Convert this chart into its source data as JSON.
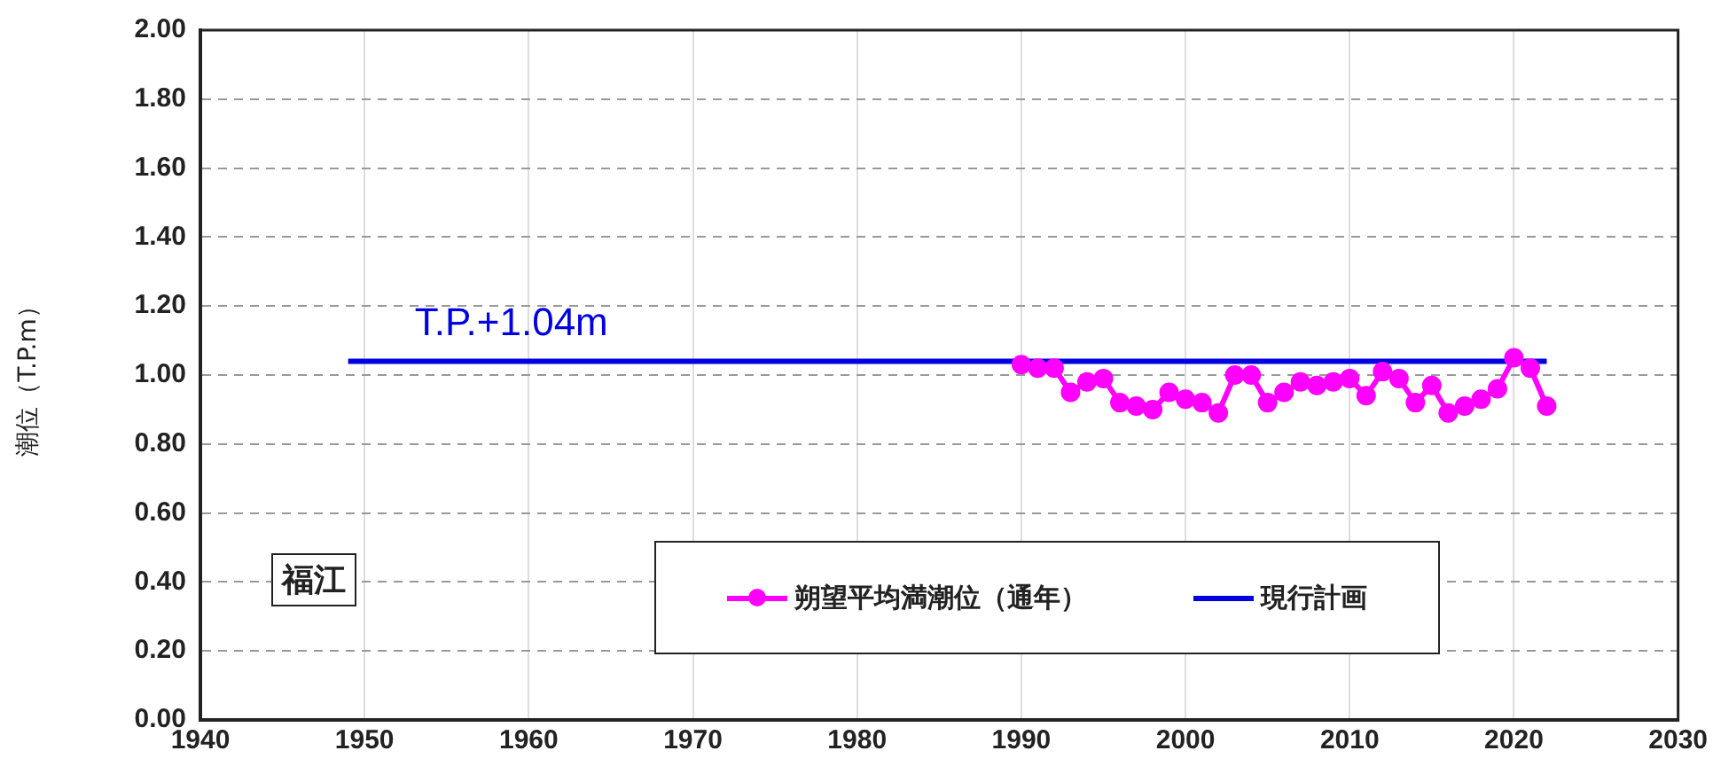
{
  "chart_data": {
    "type": "line",
    "ylabel": "潮位（T.P.m）",
    "xlim": [
      1940,
      2030
    ],
    "xticks": [
      1940,
      1950,
      1960,
      1970,
      1980,
      1990,
      2000,
      2010,
      2020,
      2030
    ],
    "ylim": [
      0,
      2
    ],
    "yticks": [
      {
        "value": 0,
        "label": "0.00"
      },
      {
        "value": 0.2,
        "label": "0.20"
      },
      {
        "value": 0.4,
        "label": "0.40"
      },
      {
        "value": 0.6,
        "label": "0.60"
      },
      {
        "value": 0.8,
        "label": "0.80"
      },
      {
        "value": 1,
        "label": "1.00"
      },
      {
        "value": 1.2,
        "label": "1.20"
      },
      {
        "value": 1.4,
        "label": "1.40"
      },
      {
        "value": 1.6,
        "label": "1.60"
      },
      {
        "value": 1.8,
        "label": "1.80"
      },
      {
        "value": 2,
        "label": "2.00"
      }
    ],
    "grid": true,
    "legend": "bottom right",
    "series": [
      {
        "name": "朔望平均満潮位（通年）",
        "color": "#ff00ff",
        "marker": "circle",
        "x": [
          1990,
          1991,
          1992,
          1993,
          1994,
          1995,
          1996,
          1997,
          1998,
          1999,
          2000,
          2001,
          2002,
          2003,
          2004,
          2005,
          2006,
          2007,
          2008,
          2009,
          2010,
          2011,
          2012,
          2013,
          2014,
          2015,
          2016,
          2017,
          2018,
          2019,
          2020,
          2021,
          2022
        ],
        "values": [
          1.03,
          1.02,
          1.02,
          0.95,
          0.98,
          0.99,
          0.92,
          0.91,
          0.9,
          0.95,
          0.93,
          0.92,
          0.89,
          1.0,
          1.0,
          0.92,
          0.95,
          0.98,
          0.97,
          0.98,
          0.99,
          0.94,
          1.01,
          0.99,
          0.92,
          0.97,
          0.89,
          0.91,
          0.93,
          0.96,
          1.05,
          1.02,
          0.91
        ]
      },
      {
        "name": "現行計画",
        "color": "#0000e0",
        "marker": "none",
        "x": [
          1949,
          2022
        ],
        "values": [
          1.04,
          1.04
        ]
      }
    ],
    "annotations": [
      "T.P.+1.04m",
      "福江"
    ]
  }
}
